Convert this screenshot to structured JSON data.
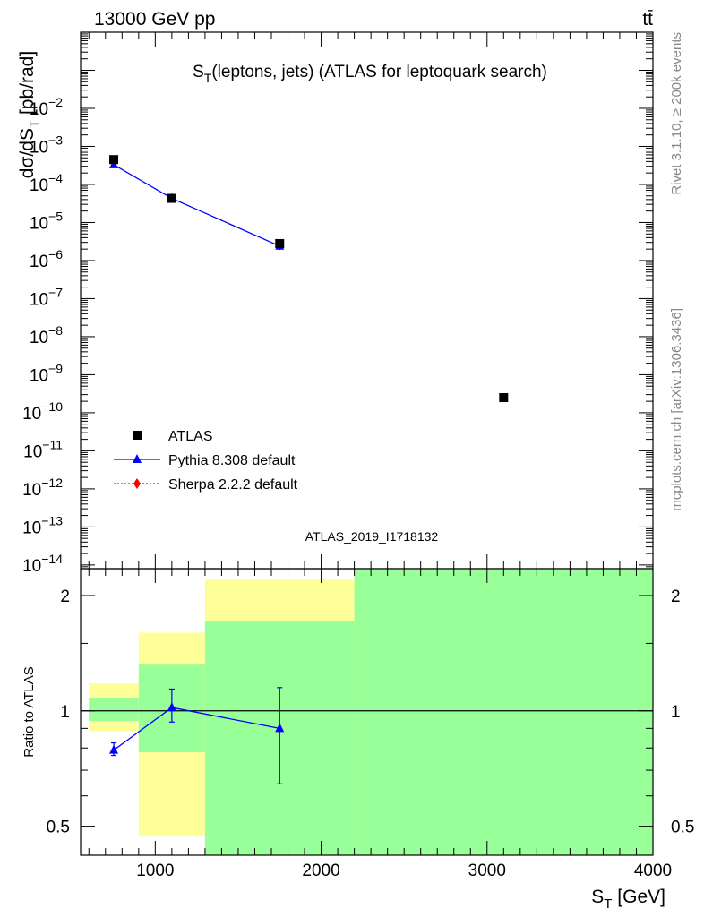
{
  "header": {
    "energy_label": "13000 GeV pp",
    "process_label": "tt̄"
  },
  "side_labels": {
    "rivet": "Rivet 3.1.10, ≥ 200k events",
    "mcplots": "mcplots.cern.ch [arXiv:1306.3436]"
  },
  "analysis_id": "ATLAS_2019_I1718132",
  "chart_data": [
    {
      "type": "scatter",
      "title": "S_T(leptons, jets) (ATLAS for leptoquark search)",
      "xlabel": "S_T [GeV]",
      "ylabel": "dσ/dS_T [pb/rad]",
      "xlim": [
        550,
        4000
      ],
      "ylim": [
        8e-15,
        1
      ],
      "log_y": true,
      "y_tick_exponents": [
        -2,
        -3,
        -4,
        -5,
        -6,
        -7,
        -8,
        -9,
        -10,
        -11,
        -12,
        -13,
        -14
      ],
      "grid": false,
      "legend_position": "bottom-left",
      "series": [
        {
          "name": "ATLAS",
          "marker": "square",
          "color": "#000000",
          "x": [
            750,
            1100,
            1750,
            3100
          ],
          "y": [
            0.00045,
            4.3e-05,
            2.8e-06,
            2.5e-10
          ]
        },
        {
          "name": "Pythia 8.308 default",
          "marker": "triangle",
          "line": "solid",
          "color": "#0000ff",
          "x": [
            750,
            1100,
            1750
          ],
          "y": [
            0.00033,
            4.3e-05,
            2.4e-06
          ],
          "y_err_low": [
            0.00031,
            4.05e-05,
            1.9e-06
          ],
          "y_err_high": [
            0.00035,
            4.55e-05,
            2.9e-06
          ]
        },
        {
          "name": "Sherpa 2.2.2 default",
          "marker": "diamond",
          "line": "dotted",
          "color": "#ff0000",
          "x": [],
          "y": []
        }
      ]
    },
    {
      "type": "scatter",
      "ylabel": "Ratio to ATLAS",
      "xlim": [
        550,
        4000
      ],
      "ylim": [
        0.42,
        2.35
      ],
      "log_y": true,
      "x_ticks": [
        1000,
        2000,
        3000,
        4000
      ],
      "y_ticks": [
        "0.5",
        "1",
        "2"
      ],
      "reference_line": 1,
      "bands": [
        {
          "x": [
            600,
            900
          ],
          "yellow": [
            0.885,
            1.18
          ],
          "green": [
            0.94,
            1.08
          ]
        },
        {
          "x": [
            900,
            1300
          ],
          "yellow": [
            0.47,
            1.6
          ],
          "green": [
            0.78,
            1.32
          ]
        },
        {
          "x": [
            1300,
            2200
          ],
          "yellow": [
            0.3,
            2.2
          ],
          "green": [
            0.3,
            1.72
          ]
        },
        {
          "x": [
            2200,
            4000
          ],
          "yellow": [
            0.3,
            2.6
          ],
          "green": [
            0.3,
            2.6
          ]
        }
      ],
      "series": [
        {
          "name": "Pythia 8.308 default",
          "color": "#0000ff",
          "x": [
            750,
            1100,
            1750
          ],
          "y": [
            0.79,
            1.02,
            0.9
          ],
          "y_err_low": [
            0.765,
            0.935,
            0.645
          ],
          "y_err_high": [
            0.825,
            1.14,
            1.15
          ]
        }
      ]
    }
  ]
}
